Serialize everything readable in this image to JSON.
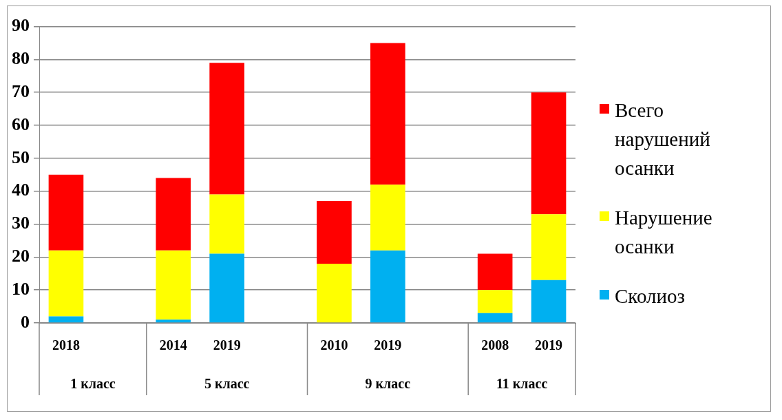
{
  "chart_data": {
    "type": "bar",
    "stacked": true,
    "categories": [
      "2018",
      null,
      "2014",
      "2019",
      null,
      "2010",
      "2019",
      null,
      "2008",
      "2019"
    ],
    "series": [
      {
        "name": "Сколиоз",
        "color": "#00b0f0",
        "values": [
          2,
          null,
          1,
          21,
          null,
          0,
          22,
          null,
          3,
          13
        ]
      },
      {
        "name": "Нарушение осанки",
        "color": "#ffff00",
        "values": [
          20,
          null,
          21,
          18,
          null,
          18,
          20,
          null,
          7,
          20
        ]
      },
      {
        "name": "Всего нарушений осанки",
        "color": "#ff0000",
        "values": [
          23,
          null,
          22,
          40,
          null,
          19,
          43,
          null,
          11,
          37
        ]
      }
    ],
    "ylim": [
      0,
      90
    ],
    "yticks": [
      0,
      10,
      20,
      30,
      40,
      50,
      60,
      70,
      80,
      90
    ],
    "grid": "y",
    "legend": "right",
    "annotations": [
      "1 класс",
      "5 класс",
      "9 класс",
      "11 класс"
    ]
  }
}
